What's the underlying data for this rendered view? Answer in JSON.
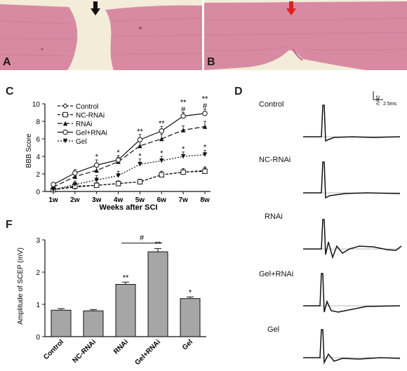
{
  "panels": {
    "a": "A",
    "b": "B",
    "c": "C",
    "d": "D",
    "f": "F"
  },
  "panel_d": {
    "scale_v": "2mV",
    "scale_t": "2.5ms",
    "traces": [
      "Control",
      "NC-RNAi",
      "RNAi",
      "Gel+RNAi",
      "Gel"
    ]
  },
  "colors": {
    "tissue": "#d98aa3",
    "background": "#f3ecd9",
    "arrow_a": "#111111",
    "arrow_b": "#e0201b",
    "bar_fill": "#a6a6a6"
  },
  "chart_data": [
    {
      "type": "line",
      "xlabel": "Weeks after SCI",
      "ylabel": "BBB Score",
      "x": [
        "1w",
        "2w",
        "3w",
        "4w",
        "5w",
        "6w",
        "7w",
        "8w"
      ],
      "ylim": [
        0,
        10
      ],
      "yticks": [
        0,
        2,
        4,
        6,
        8,
        10
      ],
      "legend_position": "top-left",
      "series": [
        {
          "name": "Control",
          "marker": "open-diamond",
          "dash": "dashed",
          "values": [
            0.2,
            0.5,
            0.7,
            0.9,
            1.1,
            1.9,
            2.2,
            2.4
          ],
          "err": [
            0.2,
            0.3,
            0.3,
            0.3,
            0.3,
            0.4,
            0.4,
            0.4
          ]
        },
        {
          "name": "NC-RNAi",
          "marker": "open-square",
          "dash": "dashed",
          "values": [
            0.2,
            0.6,
            0.7,
            0.9,
            1.1,
            1.9,
            2.2,
            2.3
          ],
          "err": [
            0.2,
            0.3,
            0.3,
            0.3,
            0.3,
            0.4,
            0.4,
            0.4
          ]
        },
        {
          "name": "RNAi",
          "marker": "filled-triangle",
          "dash": "long-dash",
          "values": [
            0.5,
            1.7,
            2.4,
            3.4,
            5.2,
            6.0,
            7.0,
            7.4
          ],
          "err": [
            0.2,
            0.4,
            0.5,
            0.5,
            0.6,
            0.5,
            0.5,
            0.6
          ]
        },
        {
          "name": "Gel+RNAi",
          "marker": "open-circle",
          "dash": "solid",
          "values": [
            0.8,
            2.1,
            3.0,
            3.6,
            5.9,
            6.9,
            8.6,
            8.9
          ],
          "err": [
            0.2,
            0.4,
            0.6,
            0.5,
            0.6,
            0.5,
            0.4,
            0.5
          ]
        },
        {
          "name": "Gel",
          "marker": "filled-triangle-down",
          "dash": "dotted",
          "values": [
            0.2,
            0.8,
            1.3,
            1.8,
            3.1,
            3.5,
            4.0,
            4.2
          ],
          "err": [
            0.2,
            0.4,
            0.5,
            0.5,
            0.6,
            0.5,
            0.5,
            0.5
          ]
        }
      ],
      "annotations": [
        {
          "x": "3w",
          "text": "*"
        },
        {
          "x": "4w",
          "text": "*"
        },
        {
          "x": "5w",
          "text": "**"
        },
        {
          "x": "5w",
          "text": "*"
        },
        {
          "x": "6w",
          "text": "**"
        },
        {
          "x": "6w",
          "text": "*"
        },
        {
          "x": "7w",
          "text": "#"
        },
        {
          "x": "7w",
          "text": "**"
        },
        {
          "x": "7w",
          "text": "*"
        },
        {
          "x": "8w",
          "text": "#"
        },
        {
          "x": "8w",
          "text": "**"
        },
        {
          "x": "8w",
          "text": "*"
        }
      ]
    },
    {
      "type": "bar",
      "ylabel": "Amplitude of SCEP (mV)",
      "categories": [
        "Control",
        "NC-RNAi",
        "RNAi",
        "Gel+RNAi",
        "Gel"
      ],
      "values": [
        0.82,
        0.8,
        1.62,
        2.63,
        1.18
      ],
      "err": [
        0.05,
        0.04,
        0.07,
        0.1,
        0.05
      ],
      "ylim": [
        0,
        3
      ],
      "yticks": [
        0,
        1,
        2,
        3
      ],
      "bar_labels": [
        "",
        "",
        "**",
        "**",
        "*"
      ],
      "bracket": {
        "from": "RNAi",
        "to": "Gel+RNAi",
        "text": "#"
      }
    }
  ]
}
